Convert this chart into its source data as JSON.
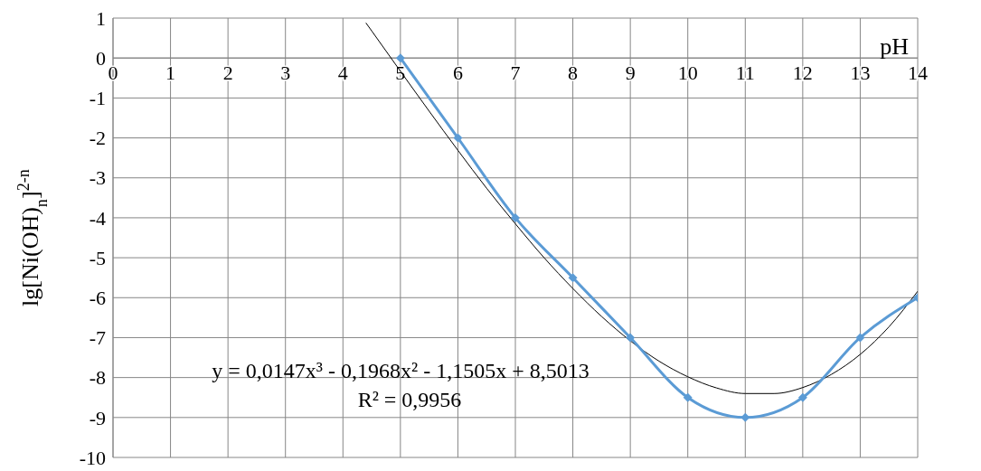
{
  "chart_data": {
    "type": "line",
    "xlabel": "pH",
    "ylabel": "lg[Ni(OH)$_{n}$]$^{2-n}$",
    "xlim": [
      0,
      14
    ],
    "ylim": [
      -10,
      1
    ],
    "xticks": [
      0,
      1,
      2,
      3,
      4,
      5,
      6,
      7,
      8,
      9,
      10,
      11,
      12,
      13,
      14
    ],
    "yticks": [
      -10,
      -9,
      -8,
      -7,
      -6,
      -5,
      -4,
      -3,
      -2,
      -1,
      0,
      1
    ],
    "grid": true,
    "series": [
      {
        "color": "#5b9bd5",
        "marker": "diamond",
        "line_style": "solid",
        "x": [
          5,
          6,
          7,
          8,
          9,
          10,
          11,
          12,
          13,
          14
        ],
        "values": [
          0,
          -2,
          -4,
          -5.5,
          -7,
          -8.5,
          -9,
          -8.5,
          -7,
          -6
        ]
      },
      {
        "type": "line",
        "color": "#000000",
        "marker": "none",
        "line_style": "solid",
        "x": [
          4.4,
          4.5,
          5,
          5.5,
          6,
          6.5,
          7,
          7.5,
          8,
          8.5,
          9,
          9.5,
          10,
          10.5,
          11,
          11.5,
          12,
          12.5,
          13,
          13.5,
          14
        ],
        "values": [
          0.88,
          0.68,
          -0.33,
          -1.33,
          -2.31,
          -3.26,
          -4.15,
          -5.0,
          -5.77,
          -6.47,
          -7.08,
          -7.59,
          -7.98,
          -8.26,
          -8.4,
          -8.4,
          -8.25,
          -7.92,
          -7.42,
          -6.73,
          -5.84
        ]
      }
    ],
    "annotations": [
      "y = 0,0147x³ - 0,1968x² - 1,1505x + 8,5013",
      "R² = 0,9956"
    ]
  }
}
